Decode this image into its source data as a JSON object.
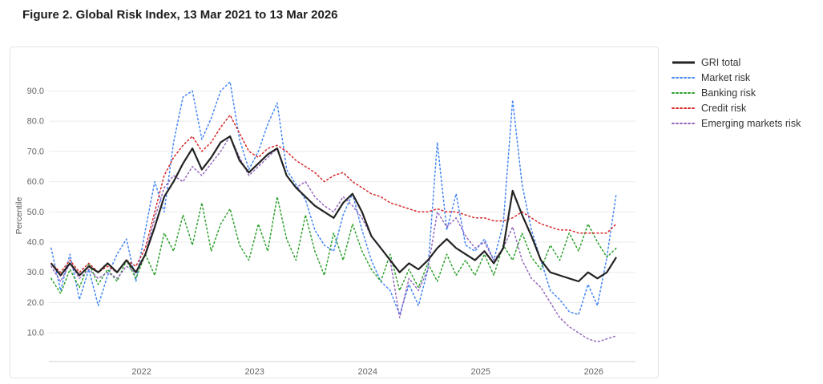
{
  "figure": {
    "title": "Figure 2. Global Risk Index, 13 Mar 2021 to 13 Mar 2026"
  },
  "chart_data": {
    "type": "line",
    "title": "Figure 2. Global Risk Index, 13 Mar 2021 to 13 Mar 2026",
    "xlabel": "",
    "ylabel": "Percentile",
    "grid": "horizontal",
    "legend_position": "right-outside",
    "x_start": 2021.2,
    "x_step": 0.0833333,
    "xlim": [
      2021.18,
      2026.37
    ],
    "ylim": [
      0.5,
      97
    ],
    "x_ticks": [
      2022,
      2023,
      2024,
      2025,
      2026
    ],
    "x_tick_labels": [
      "2022",
      "2023",
      "2024",
      "2025",
      "2026"
    ],
    "y_ticks": [
      10,
      20,
      30,
      40,
      50,
      60,
      70,
      80,
      90
    ],
    "y_tick_labels": [
      "10.0",
      "20.0",
      "30.0",
      "40.0",
      "50.0",
      "60.0",
      "70.0",
      "80.0",
      "90.0"
    ],
    "series": [
      {
        "name": "GRI total",
        "color": "#222222",
        "style": "solid",
        "width": 2.2,
        "z": 1,
        "values": [
          33,
          29,
          33,
          29,
          32,
          30,
          33,
          30,
          34,
          30,
          36,
          45,
          55,
          60,
          66,
          71,
          64,
          68,
          73,
          75,
          67,
          63,
          66,
          69,
          71,
          62,
          58,
          55,
          52,
          50,
          48,
          53,
          56,
          50,
          42,
          38,
          34,
          30,
          33,
          31,
          34,
          38,
          41,
          38,
          36,
          34,
          37,
          33,
          38,
          57,
          49,
          42,
          34,
          30,
          29,
          28,
          27,
          30,
          28,
          30,
          35
        ]
      },
      {
        "name": "Market risk",
        "color": "#4285f4",
        "style": "dotted",
        "width": 1.5,
        "z": 0,
        "values": [
          38,
          24,
          36,
          21,
          31,
          19,
          29,
          36,
          41,
          27,
          44,
          60,
          50,
          73,
          88,
          90,
          74,
          81,
          90,
          93,
          74,
          64,
          70,
          79,
          86,
          64,
          59,
          54,
          44,
          39,
          37,
          49,
          56,
          44,
          34,
          27,
          24,
          16,
          26,
          19,
          31,
          73,
          44,
          56,
          39,
          37,
          41,
          34,
          46,
          87,
          59,
          44,
          34,
          24,
          21,
          17,
          16,
          26,
          19,
          35,
          56
        ]
      },
      {
        "name": "Banking risk",
        "color": "#2ca02c",
        "style": "dotted",
        "width": 1.5,
        "z": 0,
        "values": [
          28,
          23,
          31,
          25,
          33,
          26,
          31,
          27,
          34,
          28,
          36,
          29,
          43,
          37,
          49,
          39,
          53,
          37,
          46,
          51,
          39,
          34,
          46,
          37,
          55,
          41,
          34,
          49,
          37,
          29,
          43,
          34,
          46,
          37,
          31,
          27,
          36,
          24,
          31,
          25,
          33,
          27,
          36,
          29,
          34,
          29,
          36,
          29,
          39,
          34,
          43,
          35,
          31,
          39,
          34,
          43,
          37,
          46,
          40,
          35,
          38
        ]
      },
      {
        "name": "Credit risk",
        "color": "#d62728",
        "style": "dotted",
        "width": 1.5,
        "z": 0,
        "values": [
          33,
          30,
          34,
          30,
          33,
          30,
          32,
          30,
          34,
          32,
          38,
          50,
          62,
          68,
          72,
          75,
          70,
          73,
          78,
          82,
          76,
          70,
          68,
          71,
          72,
          70,
          67,
          65,
          63,
          60,
          62,
          63,
          60,
          58,
          56,
          55,
          53,
          52,
          51,
          50,
          50,
          51,
          50,
          50,
          49,
          48,
          48,
          47,
          47,
          48,
          50,
          48,
          46,
          45,
          44,
          44,
          43,
          43,
          43,
          43,
          46
        ]
      },
      {
        "name": "Emerging markets risk",
        "color": "#9467bd",
        "style": "dotted",
        "width": 1.5,
        "z": 0,
        "values": [
          32,
          27,
          33,
          28,
          31,
          28,
          30,
          28,
          32,
          30,
          36,
          48,
          58,
          62,
          60,
          65,
          62,
          66,
          70,
          75,
          68,
          62,
          65,
          68,
          71,
          62,
          58,
          60,
          55,
          52,
          50,
          55,
          52,
          48,
          42,
          38,
          34,
          15,
          28,
          24,
          31,
          50,
          45,
          48,
          42,
          38,
          40,
          34,
          38,
          45,
          34,
          28,
          25,
          20,
          15,
          12,
          10,
          8,
          7,
          8,
          9
        ]
      }
    ]
  }
}
